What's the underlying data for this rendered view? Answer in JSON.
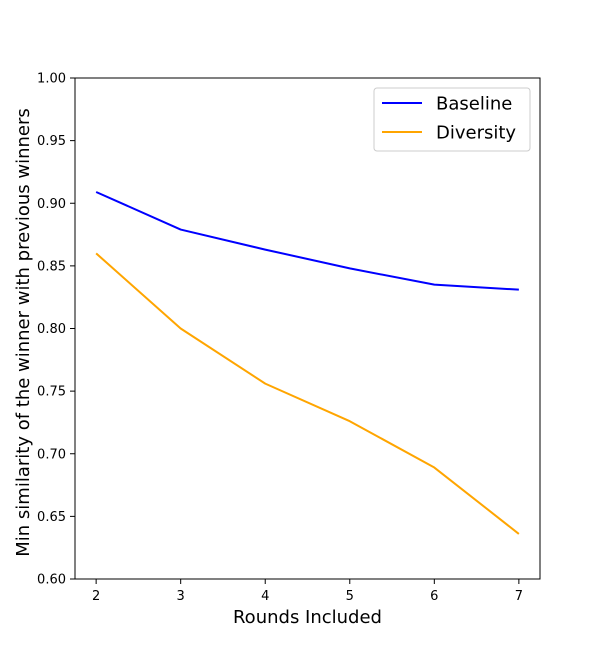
{
  "chart_data": {
    "type": "line",
    "title": "",
    "xlabel": "Rounds Included",
    "ylabel": "Min similarity of the winner with previous winners",
    "x": [
      2,
      3,
      4,
      5,
      6,
      7
    ],
    "xlim": [
      1.75,
      7.25
    ],
    "ylim": [
      0.6,
      1.0
    ],
    "xticks": [
      "2",
      "3",
      "4",
      "5",
      "6",
      "7"
    ],
    "yticks": [
      "0.60",
      "0.65",
      "0.70",
      "0.75",
      "0.80",
      "0.85",
      "0.90",
      "0.95",
      "1.00"
    ],
    "grid": false,
    "legend_position": "top-right",
    "series": [
      {
        "name": "Baseline",
        "color": "#0000ff",
        "values": [
          0.909,
          0.879,
          0.863,
          0.848,
          0.835,
          0.831
        ]
      },
      {
        "name": "Diversity",
        "color": "#ffa500",
        "values": [
          0.86,
          0.8,
          0.756,
          0.726,
          0.689,
          0.636
        ]
      }
    ]
  }
}
